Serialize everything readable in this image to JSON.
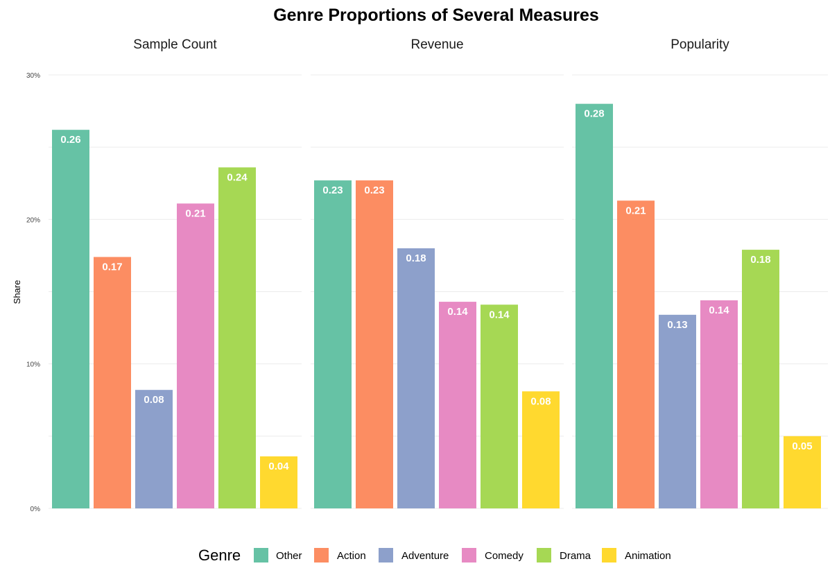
{
  "chart_data": {
    "type": "bar",
    "title": "Genre Proportions of Several Measures",
    "ylabel": "Share",
    "xlabel": "",
    "ylim": [
      0,
      0.3
    ],
    "yticks": [
      {
        "value": 0,
        "label": "0%"
      },
      {
        "value": 0.1,
        "label": "10%"
      },
      {
        "value": 0.2,
        "label": "20%"
      },
      {
        "value": 0.3,
        "label": "30%"
      }
    ],
    "grid": true,
    "legend_position": "bottom",
    "legend_title": "Genre",
    "categories": [
      "Other",
      "Action",
      "Adventure",
      "Comedy",
      "Drama",
      "Animation"
    ],
    "colors": [
      "#66c2a5",
      "#fc8d62",
      "#8da0cb",
      "#e78ac3",
      "#a6d854",
      "#ffd92f"
    ],
    "panels": [
      {
        "title": "Sample Count",
        "values": [
          0.262,
          0.174,
          0.082,
          0.211,
          0.236,
          0.036
        ],
        "labels": [
          "0.26",
          "0.17",
          "0.08",
          "0.21",
          "0.24",
          "0.04"
        ]
      },
      {
        "title": "Revenue",
        "values": [
          0.227,
          0.227,
          0.18,
          0.143,
          0.141,
          0.081
        ],
        "labels": [
          "0.23",
          "0.23",
          "0.18",
          "0.14",
          "0.14",
          "0.08"
        ]
      },
      {
        "title": "Popularity",
        "values": [
          0.28,
          0.213,
          0.134,
          0.144,
          0.179,
          0.05
        ],
        "labels": [
          "0.28",
          "0.21",
          "0.13",
          "0.14",
          "0.18",
          "0.05"
        ]
      }
    ]
  }
}
